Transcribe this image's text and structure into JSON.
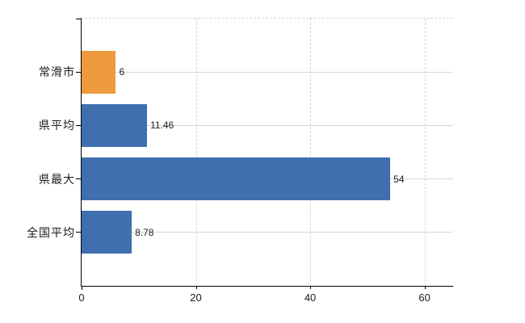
{
  "chart_data": {
    "type": "bar",
    "orientation": "horizontal",
    "title": "",
    "xlabel": "",
    "ylabel": "",
    "categories": [
      "常滑市",
      "県平均",
      "県最大",
      "全国平均"
    ],
    "values": [
      6,
      11.46,
      54,
      8.78
    ],
    "value_labels": [
      "6",
      "11.46",
      "54",
      "8.78"
    ],
    "bar_colors": [
      "#ED9B3E",
      "#3F6FAE",
      "#3F6FAE",
      "#3F6FAE"
    ],
    "highlight_color": "#ED9B3E",
    "series_color": "#3F6FAE",
    "x_ticks": [
      0,
      20,
      40,
      60
    ],
    "x_tick_labels": [
      "0",
      "20",
      "40",
      "60"
    ],
    "xlim": [
      0,
      65
    ],
    "grid": {
      "horizontal": "solid",
      "vertical": "dashed",
      "color": "#d6dad2"
    },
    "axis_color": "#000000",
    "text_color": "#1b1b1b",
    "legend": null,
    "background": "#ffffff"
  }
}
